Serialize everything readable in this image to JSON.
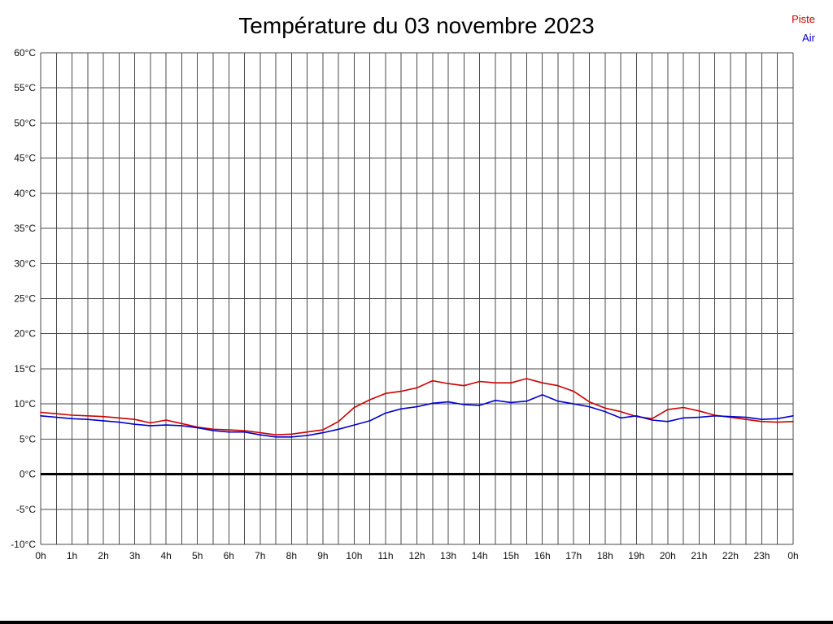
{
  "legend": {
    "items": [
      {
        "label": "Piste",
        "color": "#cc0000"
      },
      {
        "label": "Air",
        "color": "#0000cc"
      }
    ]
  },
  "chart_data": {
    "type": "line",
    "title": "Température du 03 novembre 2023",
    "xlabel": "",
    "ylabel": "",
    "xlim": [
      0,
      24
    ],
    "ylim": [
      -10,
      60
    ],
    "grid": true,
    "grid_x_interval_hours": 0.5,
    "grid_y_interval_degrees": 5,
    "legend_position": "top-right",
    "zero_line": {
      "value": 0,
      "color": "#000000",
      "width": 3
    },
    "y_ticks": [
      {
        "v": 60,
        "label": "60°C"
      },
      {
        "v": 55,
        "label": "55°C"
      },
      {
        "v": 50,
        "label": "50°C"
      },
      {
        "v": 45,
        "label": "45°C"
      },
      {
        "v": 40,
        "label": "40°C"
      },
      {
        "v": 35,
        "label": "35°C"
      },
      {
        "v": 30,
        "label": "30°C"
      },
      {
        "v": 25,
        "label": "25°C"
      },
      {
        "v": 20,
        "label": "20°C"
      },
      {
        "v": 15,
        "label": "15°C"
      },
      {
        "v": 10,
        "label": "10°C"
      },
      {
        "v": 5,
        "label": "5°C"
      },
      {
        "v": 0,
        "label": "0°C"
      },
      {
        "v": -5,
        "label": "-5°C"
      },
      {
        "v": -10,
        "label": "-10°C"
      }
    ],
    "x_ticks": [
      {
        "v": 0,
        "label": "0h"
      },
      {
        "v": 1,
        "label": "1h"
      },
      {
        "v": 2,
        "label": "2h"
      },
      {
        "v": 3,
        "label": "3h"
      },
      {
        "v": 4,
        "label": "4h"
      },
      {
        "v": 5,
        "label": "5h"
      },
      {
        "v": 6,
        "label": "6h"
      },
      {
        "v": 7,
        "label": "7h"
      },
      {
        "v": 8,
        "label": "8h"
      },
      {
        "v": 9,
        "label": "9h"
      },
      {
        "v": 10,
        "label": "10h"
      },
      {
        "v": 11,
        "label": "11h"
      },
      {
        "v": 12,
        "label": "12h"
      },
      {
        "v": 13,
        "label": "13h"
      },
      {
        "v": 14,
        "label": "14h"
      },
      {
        "v": 15,
        "label": "15h"
      },
      {
        "v": 16,
        "label": "16h"
      },
      {
        "v": 17,
        "label": "17h"
      },
      {
        "v": 18,
        "label": "18h"
      },
      {
        "v": 19,
        "label": "19h"
      },
      {
        "v": 20,
        "label": "20h"
      },
      {
        "v": 21,
        "label": "21h"
      },
      {
        "v": 22,
        "label": "22h"
      },
      {
        "v": 23,
        "label": "23h"
      },
      {
        "v": 24,
        "label": "0h"
      }
    ],
    "series": [
      {
        "name": "Piste",
        "color": "#cc0000",
        "x": [
          0,
          0.5,
          1,
          1.5,
          2,
          2.5,
          3,
          3.5,
          4,
          4.5,
          5,
          5.5,
          6,
          6.5,
          7,
          7.5,
          8,
          8.5,
          9,
          9.5,
          10,
          10.5,
          11,
          11.5,
          12,
          12.5,
          13,
          13.5,
          14,
          14.5,
          15,
          15.5,
          16,
          16.5,
          17,
          17.5,
          18,
          18.5,
          19,
          19.5,
          20,
          20.5,
          21,
          21.5,
          22,
          22.5,
          23,
          23.5,
          24
        ],
        "values": [
          8.8,
          8.6,
          8.4,
          8.3,
          8.2,
          8.0,
          7.8,
          7.3,
          7.7,
          7.2,
          6.7,
          6.4,
          6.3,
          6.2,
          5.9,
          5.6,
          5.7,
          6.0,
          6.3,
          7.5,
          9.5,
          10.6,
          11.5,
          11.8,
          12.3,
          13.3,
          12.9,
          12.6,
          13.2,
          13.0,
          13.0,
          13.6,
          13.0,
          12.6,
          11.8,
          10.3,
          9.4,
          8.9,
          8.2,
          7.9,
          9.2,
          9.5,
          9.0,
          8.4,
          8.1,
          7.8,
          7.5,
          7.4,
          7.5
        ]
      },
      {
        "name": "Air",
        "color": "#0000cc",
        "x": [
          0,
          0.5,
          1,
          1.5,
          2,
          2.5,
          3,
          3.5,
          4,
          4.5,
          5,
          5.5,
          6,
          6.5,
          7,
          7.5,
          8,
          8.5,
          9,
          9.5,
          10,
          10.5,
          11,
          11.5,
          12,
          12.5,
          13,
          13.5,
          14,
          14.5,
          15,
          15.5,
          16,
          16.5,
          17,
          17.5,
          18,
          18.5,
          19,
          19.5,
          20,
          20.5,
          21,
          21.5,
          22,
          22.5,
          23,
          23.5,
          24
        ],
        "values": [
          8.3,
          8.1,
          7.9,
          7.8,
          7.6,
          7.4,
          7.1,
          6.9,
          7.0,
          6.9,
          6.6,
          6.2,
          6.0,
          6.0,
          5.6,
          5.3,
          5.3,
          5.5,
          5.9,
          6.4,
          7.0,
          7.6,
          8.7,
          9.3,
          9.6,
          10.1,
          10.3,
          9.9,
          9.8,
          10.5,
          10.2,
          10.4,
          11.3,
          10.4,
          10.0,
          9.6,
          8.9,
          8.0,
          8.3,
          7.7,
          7.5,
          8.0,
          8.1,
          8.3,
          8.2,
          8.1,
          7.8,
          7.9,
          8.3
        ]
      }
    ]
  }
}
